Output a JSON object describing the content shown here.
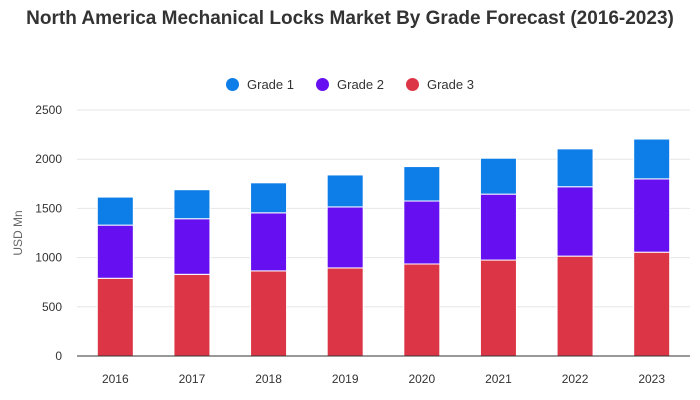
{
  "chart_data": {
    "type": "bar",
    "stacked": true,
    "title": "North America Mechanical Locks Market By Grade Forecast (2016-2023)",
    "ylabel": "USD Mn",
    "xlabel": "",
    "ylim": [
      0,
      2500
    ],
    "yticks": [
      0,
      500,
      1000,
      1500,
      2000,
      2500
    ],
    "grid": true,
    "legend_position": "top",
    "categories": [
      "2016",
      "2017",
      "2018",
      "2019",
      "2020",
      "2021",
      "2022",
      "2023"
    ],
    "series": [
      {
        "name": "Grade 3",
        "color": "#dc3545",
        "values": [
          790,
          830,
          865,
          895,
          935,
          975,
          1015,
          1055
        ]
      },
      {
        "name": "Grade 2",
        "color": "#6610f2",
        "values": [
          540,
          565,
          590,
          620,
          640,
          670,
          705,
          745
        ]
      },
      {
        "name": "Grade 1",
        "color": "#0d7de8",
        "values": [
          285,
          295,
          305,
          325,
          350,
          365,
          385,
          405
        ]
      }
    ],
    "legend_order": [
      "Grade 1",
      "Grade 2",
      "Grade 3"
    ]
  }
}
